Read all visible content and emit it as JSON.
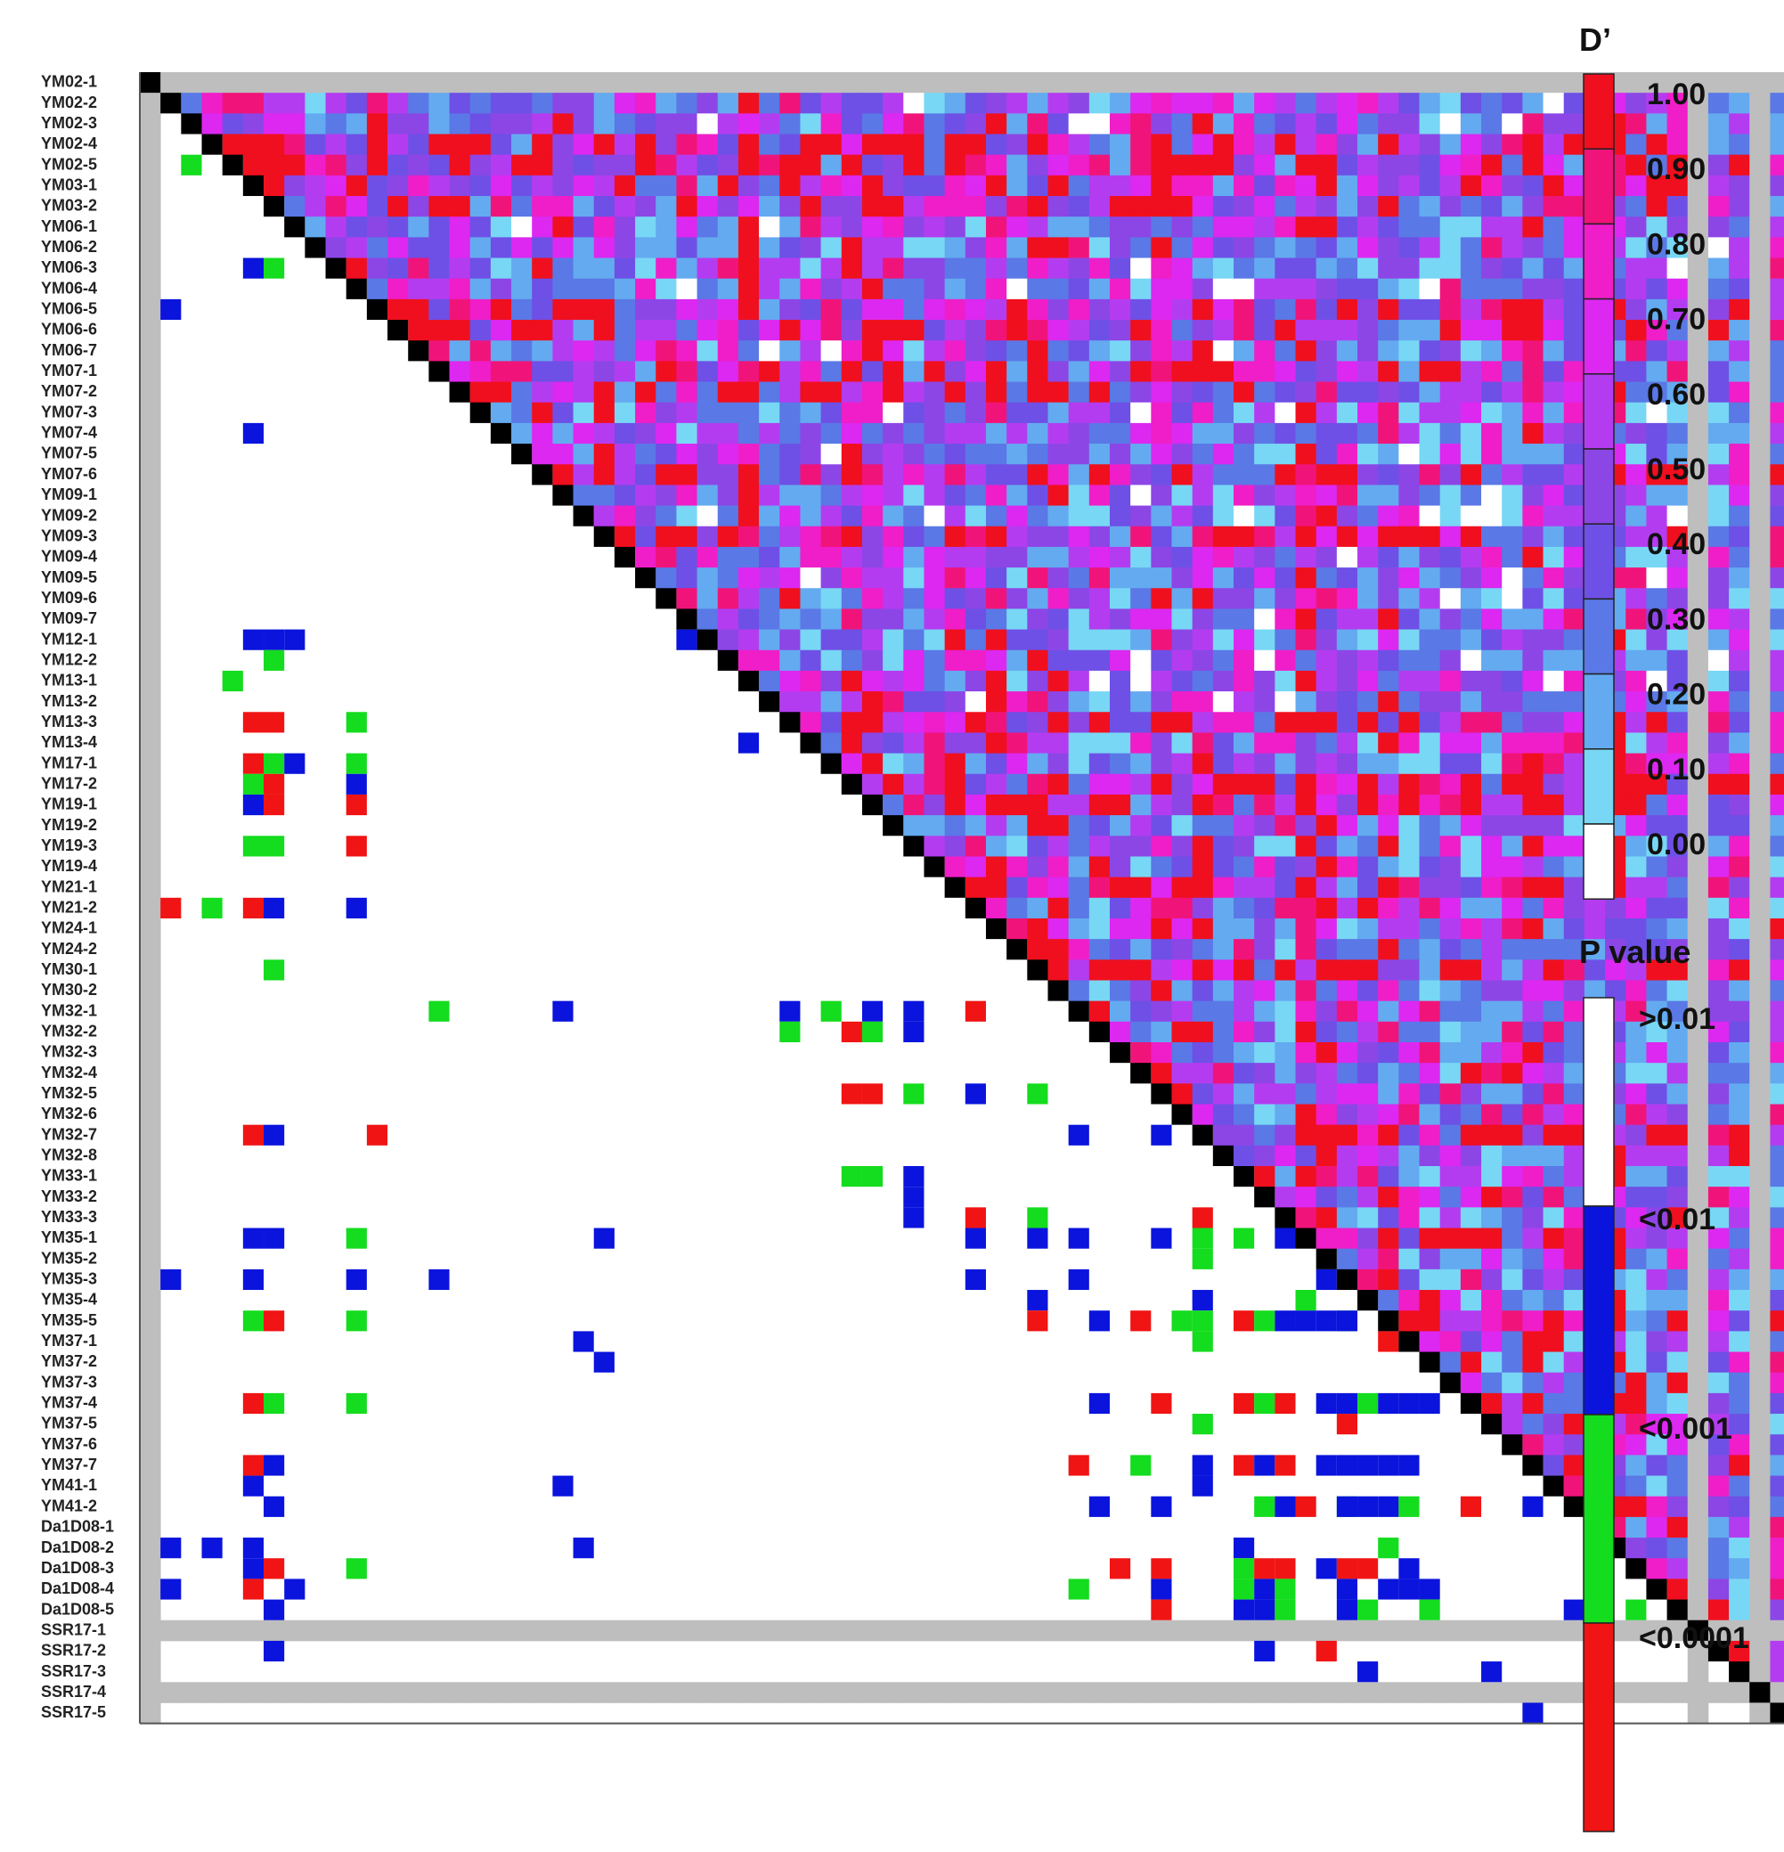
{
  "chart_data": {
    "type": "heatmap",
    "markers": [
      "YM02-1",
      "YM02-2",
      "YM02-3",
      "YM02-4",
      "YM02-5",
      "YM03-1",
      "YM03-2",
      "YM06-1",
      "YM06-2",
      "YM06-3",
      "YM06-4",
      "YM06-5",
      "YM06-6",
      "YM06-7",
      "YM07-1",
      "YM07-2",
      "YM07-3",
      "YM07-4",
      "YM07-5",
      "YM07-6",
      "YM09-1",
      "YM09-2",
      "YM09-3",
      "YM09-4",
      "YM09-5",
      "YM09-6",
      "YM09-7",
      "YM12-1",
      "YM12-2",
      "YM13-1",
      "YM13-2",
      "YM13-3",
      "YM13-4",
      "YM17-1",
      "YM17-2",
      "YM19-1",
      "YM19-2",
      "YM19-3",
      "YM19-4",
      "YM21-1",
      "YM21-2",
      "YM24-1",
      "YM24-2",
      "YM30-1",
      "YM30-2",
      "YM32-1",
      "YM32-2",
      "YM32-3",
      "YM32-4",
      "YM32-5",
      "YM32-6",
      "YM32-7",
      "YM32-8",
      "YM33-1",
      "YM33-2",
      "YM33-3",
      "YM35-1",
      "YM35-2",
      "YM35-3",
      "YM35-4",
      "YM35-5",
      "YM37-1",
      "YM37-2",
      "YM37-3",
      "YM37-4",
      "YM37-5",
      "YM37-6",
      "YM37-7",
      "YM41-1",
      "YM41-2",
      "Da1D08-1",
      "Da1D08-2",
      "Da1D08-3",
      "Da1D08-4",
      "Da1D08-5",
      "SSR17-1",
      "SSR17-2",
      "SSR17-3",
      "SSR17-4",
      "SSR17-5"
    ],
    "monomorphic_markers": [
      "YM02-1",
      "SSR17-1",
      "SSR17-4"
    ],
    "upper_triangle": "D'",
    "lower_triangle": "P value",
    "significant_pairs": [
      {
        "row": "YM02-5",
        "col": "YM02-3",
        "p": "<0.001"
      },
      {
        "row": "YM06-3",
        "col": "YM03-1",
        "p": "<0.01"
      },
      {
        "row": "YM06-3",
        "col": "YM03-2",
        "p": "<0.001"
      },
      {
        "row": "YM06-5",
        "col": "YM02-2",
        "p": "<0.01"
      },
      {
        "row": "YM07-4",
        "col": "YM03-1",
        "p": "<0.01"
      },
      {
        "row": "YM09-7",
        "col": "YM12-1",
        "p": "<0.01"
      },
      {
        "row": "YM12-1",
        "col": "YM03-1",
        "p": "<0.01"
      },
      {
        "row": "YM12-1",
        "col": "YM03-2",
        "p": "<0.01"
      },
      {
        "row": "YM12-1",
        "col": "YM06-1",
        "p": "<0.01"
      },
      {
        "row": "YM12-2",
        "col": "YM03-2",
        "p": "<0.001"
      },
      {
        "row": "YM13-1",
        "col": "YM02-5",
        "p": "<0.001"
      },
      {
        "row": "YM13-1",
        "col": "YM13-4",
        "p": "<0.01"
      },
      {
        "row": "YM13-3",
        "col": "YM03-1",
        "p": "<0.0001"
      },
      {
        "row": "YM13-3",
        "col": "YM03-2",
        "p": "<0.0001"
      },
      {
        "row": "YM13-3",
        "col": "YM06-4",
        "p": "<0.001"
      },
      {
        "row": "YM13-3",
        "col": "YM32-1",
        "p": "<0.01"
      },
      {
        "row": "YM13-3",
        "col": "YM32-2",
        "p": "<0.001"
      },
      {
        "row": "YM17-1",
        "col": "YM03-1",
        "p": "<0.0001"
      },
      {
        "row": "YM17-1",
        "col": "YM03-2",
        "p": "<0.001"
      },
      {
        "row": "YM17-1",
        "col": "YM06-1",
        "p": "<0.01"
      },
      {
        "row": "YM17-1",
        "col": "YM06-4",
        "p": "<0.001"
      },
      {
        "row": "YM17-1",
        "col": "YM32-1",
        "p": "<0.001"
      },
      {
        "row": "YM17-2",
        "col": "YM03-1",
        "p": "<0.001"
      },
      {
        "row": "YM17-2",
        "col": "YM03-2",
        "p": "<0.0001"
      },
      {
        "row": "YM17-2",
        "col": "YM06-4",
        "p": "<0.01"
      },
      {
        "row": "YM17-2",
        "col": "YM32-2",
        "p": "<0.0001"
      },
      {
        "row": "YM17-2",
        "col": "YM32-5",
        "p": "<0.0001"
      },
      {
        "row": "YM17-2",
        "col": "YM33-1",
        "p": "<0.001"
      },
      {
        "row": "YM19-1",
        "col": "YM03-1",
        "p": "<0.01"
      },
      {
        "row": "YM19-1",
        "col": "YM03-2",
        "p": "<0.0001"
      },
      {
        "row": "YM19-1",
        "col": "YM06-4",
        "p": "<0.0001"
      },
      {
        "row": "YM19-1",
        "col": "YM32-1",
        "p": "<0.01"
      },
      {
        "row": "YM19-1",
        "col": "YM32-2",
        "p": "<0.001"
      },
      {
        "row": "YM19-1",
        "col": "YM32-5",
        "p": "<0.0001"
      },
      {
        "row": "YM19-1",
        "col": "YM33-1",
        "p": "<0.001"
      },
      {
        "row": "YM19-3",
        "col": "YM03-1",
        "p": "<0.001"
      },
      {
        "row": "YM19-3",
        "col": "YM03-2",
        "p": "<0.001"
      },
      {
        "row": "YM19-3",
        "col": "YM06-4",
        "p": "<0.0001"
      },
      {
        "row": "YM19-3",
        "col": "YM32-1",
        "p": "<0.01"
      },
      {
        "row": "YM19-3",
        "col": "YM32-2",
        "p": "<0.01"
      },
      {
        "row": "YM19-3",
        "col": "YM32-5",
        "p": "<0.001"
      },
      {
        "row": "YM19-3",
        "col": "YM33-1",
        "p": "<0.01"
      },
      {
        "row": "YM19-3",
        "col": "YM33-2",
        "p": "<0.01"
      },
      {
        "row": "YM19-3",
        "col": "YM33-3",
        "p": "<0.01"
      },
      {
        "row": "YM21-2",
        "col": "YM02-2",
        "p": "<0.0001"
      },
      {
        "row": "YM21-2",
        "col": "YM02-4",
        "p": "<0.001"
      },
      {
        "row": "YM21-2",
        "col": "YM03-1",
        "p": "<0.0001"
      },
      {
        "row": "YM21-2",
        "col": "YM03-2",
        "p": "<0.01"
      },
      {
        "row": "YM21-2",
        "col": "YM06-4",
        "p": "<0.01"
      },
      {
        "row": "YM21-2",
        "col": "YM32-1",
        "p": "<0.0001"
      },
      {
        "row": "YM21-2",
        "col": "YM32-5",
        "p": "<0.01"
      },
      {
        "row": "YM21-2",
        "col": "YM33-3",
        "p": "<0.0001"
      },
      {
        "row": "YM21-2",
        "col": "YM35-1",
        "p": "<0.01"
      },
      {
        "row": "YM21-2",
        "col": "YM35-3",
        "p": "<0.01"
      },
      {
        "row": "YM30-1",
        "col": "YM03-2",
        "p": "<0.001"
      },
      {
        "row": "YM30-1",
        "col": "YM32-5",
        "p": "<0.001"
      },
      {
        "row": "YM30-1",
        "col": "YM33-3",
        "p": "<0.001"
      },
      {
        "row": "YM30-1",
        "col": "YM35-1",
        "p": "<0.01"
      },
      {
        "row": "YM30-1",
        "col": "YM35-4",
        "p": "<0.01"
      },
      {
        "row": "YM30-1",
        "col": "YM35-5",
        "p": "<0.0001"
      },
      {
        "row": "YM32-1",
        "col": "YM07-1",
        "p": "<0.001"
      },
      {
        "row": "YM32-1",
        "col": "YM09-1",
        "p": "<0.01"
      },
      {
        "row": "YM32-7",
        "col": "YM03-1",
        "p": "<0.0001"
      },
      {
        "row": "YM32-7",
        "col": "YM03-2",
        "p": "<0.01"
      },
      {
        "row": "YM32-7",
        "col": "YM06-5",
        "p": "<0.0001"
      },
      {
        "row": "YM32-7",
        "col": "YM32-1",
        "p": "<0.01"
      },
      {
        "row": "YM32-7",
        "col": "YM32-5",
        "p": "<0.01"
      },
      {
        "row": "YM32-7",
        "col": "YM33-3",
        "p": "<0.0001"
      },
      {
        "row": "YM32-7",
        "col": "YM35-1",
        "p": "<0.001"
      },
      {
        "row": "YM32-7",
        "col": "YM35-2",
        "p": "<0.001"
      },
      {
        "row": "YM32-7",
        "col": "YM35-4",
        "p": "<0.01"
      },
      {
        "row": "YM32-7",
        "col": "YM35-5",
        "p": "<0.001"
      },
      {
        "row": "YM32-7",
        "col": "YM37-1",
        "p": "<0.001"
      },
      {
        "row": "YM32-7",
        "col": "YM37-5",
        "p": "<0.001"
      },
      {
        "row": "YM32-7",
        "col": "YM37-7",
        "p": "<0.01"
      },
      {
        "row": "YM32-7",
        "col": "YM41-1",
        "p": "<0.01"
      },
      {
        "row": "YM35-1",
        "col": "YM03-1",
        "p": "<0.01"
      },
      {
        "row": "YM35-1",
        "col": "YM03-2",
        "p": "<0.01"
      },
      {
        "row": "YM35-1",
        "col": "YM06-4",
        "p": "<0.001"
      },
      {
        "row": "YM35-1",
        "col": "YM09-3",
        "p": "<0.01"
      },
      {
        "row": "YM35-1",
        "col": "YM32-1",
        "p": "<0.01"
      },
      {
        "row": "YM35-1",
        "col": "YM32-5",
        "p": "<0.01"
      },
      {
        "row": "YM35-1",
        "col": "YM33-1",
        "p": "<0.001"
      },
      {
        "row": "YM35-1",
        "col": "YM33-3",
        "p": "<0.01"
      },
      {
        "row": "YM35-1",
        "col": "YM35-4",
        "p": "<0.001"
      },
      {
        "row": "YM35-1",
        "col": "YM35-5",
        "p": "<0.01"
      },
      {
        "row": "YM35-1",
        "col": "YM41-2",
        "p": "<0.0001"
      },
      {
        "row": "YM35-3",
        "col": "YM02-2",
        "p": "<0.01"
      },
      {
        "row": "YM35-3",
        "col": "YM03-1",
        "p": "<0.01"
      },
      {
        "row": "YM35-3",
        "col": "YM06-4",
        "p": "<0.01"
      },
      {
        "row": "YM35-3",
        "col": "YM07-1",
        "p": "<0.01"
      },
      {
        "row": "YM35-3",
        "col": "YM32-1",
        "p": "<0.01"
      },
      {
        "row": "YM35-3",
        "col": "YM35-2",
        "p": "<0.01"
      },
      {
        "row": "YM35-3",
        "col": "YM35-5",
        "p": "<0.001"
      },
      {
        "row": "YM35-3",
        "col": "YM37-5",
        "p": "<0.0001"
      },
      {
        "row": "YM35-3",
        "col": "YM41-2",
        "p": "<0.001"
      },
      {
        "row": "YM35-5",
        "col": "YM03-1",
        "p": "<0.001"
      },
      {
        "row": "YM35-5",
        "col": "YM03-2",
        "p": "<0.0001"
      },
      {
        "row": "YM35-5",
        "col": "YM06-4",
        "p": "<0.001"
      },
      {
        "row": "YM35-5",
        "col": "YM32-2",
        "p": "<0.01"
      },
      {
        "row": "YM35-5",
        "col": "YM32-4",
        "p": "<0.0001"
      },
      {
        "row": "YM35-5",
        "col": "YM32-6",
        "p": "<0.001"
      },
      {
        "row": "YM35-5",
        "col": "YM33-1",
        "p": "<0.0001"
      },
      {
        "row": "YM35-5",
        "col": "YM33-2",
        "p": "<0.001"
      },
      {
        "row": "YM35-5",
        "col": "YM33-3",
        "p": "<0.01"
      },
      {
        "row": "YM35-5",
        "col": "YM35-2",
        "p": "<0.01"
      },
      {
        "row": "YM35-5",
        "col": "YM35-3",
        "p": "<0.01"
      },
      {
        "row": "YM35-5",
        "col": "YM37-1",
        "p": "<0.0001"
      },
      {
        "row": "YM35-5",
        "col": "YM41-2",
        "p": "<0.01"
      },
      {
        "row": "YM37-1",
        "col": "YM09-2",
        "p": "<0.01"
      },
      {
        "row": "YM37-2",
        "col": "YM09-3",
        "p": "<0.01"
      },
      {
        "row": "YM37-4",
        "col": "YM03-1",
        "p": "<0.0001"
      },
      {
        "row": "YM37-4",
        "col": "YM03-2",
        "p": "<0.001"
      },
      {
        "row": "YM37-4",
        "col": "YM06-4",
        "p": "<0.001"
      },
      {
        "row": "YM37-4",
        "col": "YM32-2",
        "p": "<0.01"
      },
      {
        "row": "YM37-4",
        "col": "YM32-5",
        "p": "<0.0001"
      },
      {
        "row": "YM37-4",
        "col": "YM33-1",
        "p": "<0.0001"
      },
      {
        "row": "YM37-4",
        "col": "YM33-2",
        "p": "<0.001"
      },
      {
        "row": "YM37-4",
        "col": "YM33-3",
        "p": "<0.0001"
      },
      {
        "row": "YM37-4",
        "col": "YM35-2",
        "p": "<0.01"
      },
      {
        "row": "YM37-4",
        "col": "YM35-3",
        "p": "<0.01"
      },
      {
        "row": "YM37-4",
        "col": "YM35-4",
        "p": "<0.001"
      },
      {
        "row": "YM37-4",
        "col": "YM35-5",
        "p": "<0.01"
      },
      {
        "row": "YM37-4",
        "col": "YM37-1",
        "p": "<0.01"
      },
      {
        "row": "YM37-4",
        "col": "YM37-2",
        "p": "<0.01"
      },
      {
        "row": "YM37-4",
        "col": "YM41-2",
        "p": "<0.0001"
      },
      {
        "row": "YM37-7",
        "col": "YM03-1",
        "p": "<0.0001"
      },
      {
        "row": "YM37-7",
        "col": "YM03-2",
        "p": "<0.01"
      },
      {
        "row": "YM37-7",
        "col": "YM32-1",
        "p": "<0.0001"
      },
      {
        "row": "YM37-7",
        "col": "YM32-4",
        "p": "<0.001"
      },
      {
        "row": "YM37-7",
        "col": "YM33-1",
        "p": "<0.0001"
      },
      {
        "row": "YM37-7",
        "col": "YM33-2",
        "p": "<0.01"
      },
      {
        "row": "YM37-7",
        "col": "YM33-3",
        "p": "<0.0001"
      },
      {
        "row": "YM37-7",
        "col": "YM35-2",
        "p": "<0.01"
      },
      {
        "row": "YM37-7",
        "col": "YM35-3",
        "p": "<0.01"
      },
      {
        "row": "YM37-7",
        "col": "YM35-4",
        "p": "<0.01"
      },
      {
        "row": "YM37-7",
        "col": "YM35-5",
        "p": "<0.01"
      },
      {
        "row": "YM37-7",
        "col": "YM37-1",
        "p": "<0.01"
      },
      {
        "row": "YM37-7",
        "col": "YM41-2",
        "p": "<0.01"
      },
      {
        "row": "YM41-1",
        "col": "YM03-1",
        "p": "<0.01"
      },
      {
        "row": "YM41-1",
        "col": "YM09-1",
        "p": "<0.01"
      },
      {
        "row": "YM41-2",
        "col": "YM03-2",
        "p": "<0.01"
      },
      {
        "row": "YM41-2",
        "col": "YM32-2",
        "p": "<0.01"
      },
      {
        "row": "YM41-2",
        "col": "YM32-5",
        "p": "<0.01"
      },
      {
        "row": "YM41-2",
        "col": "YM33-2",
        "p": "<0.001"
      },
      {
        "row": "YM41-2",
        "col": "YM33-3",
        "p": "<0.01"
      },
      {
        "row": "YM41-2",
        "col": "YM35-3",
        "p": "<0.01"
      },
      {
        "row": "YM41-2",
        "col": "YM35-4",
        "p": "<0.01"
      },
      {
        "row": "YM41-2",
        "col": "YM37-1",
        "p": "<0.001"
      },
      {
        "row": "Da1D08-2",
        "col": "YM02-2",
        "p": "<0.01"
      },
      {
        "row": "Da1D08-2",
        "col": "YM02-4",
        "p": "<0.01"
      },
      {
        "row": "Da1D08-2",
        "col": "YM03-1",
        "p": "<0.01"
      },
      {
        "row": "Da1D08-2",
        "col": "YM09-2",
        "p": "<0.01"
      },
      {
        "row": "Da1D08-2",
        "col": "YM33-1",
        "p": "<0.01"
      },
      {
        "row": "Da1D08-2",
        "col": "YM35-5",
        "p": "<0.001"
      },
      {
        "row": "Da1D08-3",
        "col": "YM03-1",
        "p": "<0.01"
      },
      {
        "row": "Da1D08-3",
        "col": "YM03-2",
        "p": "<0.0001"
      },
      {
        "row": "Da1D08-3",
        "col": "YM06-4",
        "p": "<0.001"
      },
      {
        "row": "Da1D08-3",
        "col": "YM32-3",
        "p": "<0.0001"
      },
      {
        "row": "Da1D08-3",
        "col": "YM32-5",
        "p": "<0.0001"
      },
      {
        "row": "Da1D08-3",
        "col": "YM33-1",
        "p": "<0.001"
      },
      {
        "row": "Da1D08-3",
        "col": "YM33-2",
        "p": "<0.0001"
      },
      {
        "row": "Da1D08-3",
        "col": "YM33-3",
        "p": "<0.0001"
      },
      {
        "row": "Da1D08-3",
        "col": "YM35-2",
        "p": "<0.01"
      },
      {
        "row": "Da1D08-3",
        "col": "YM35-3",
        "p": "<0.0001"
      },
      {
        "row": "Da1D08-3",
        "col": "YM35-4",
        "p": "<0.0001"
      },
      {
        "row": "Da1D08-3",
        "col": "YM37-1",
        "p": "<0.01"
      },
      {
        "row": "Da1D08-4",
        "col": "YM02-2",
        "p": "<0.01"
      },
      {
        "row": "Da1D08-4",
        "col": "YM03-1",
        "p": "<0.0001"
      },
      {
        "row": "Da1D08-4",
        "col": "YM06-1",
        "p": "<0.01"
      },
      {
        "row": "Da1D08-4",
        "col": "YM32-1",
        "p": "<0.001"
      },
      {
        "row": "Da1D08-4",
        "col": "YM32-5",
        "p": "<0.01"
      },
      {
        "row": "Da1D08-4",
        "col": "YM33-1",
        "p": "<0.001"
      },
      {
        "row": "Da1D08-4",
        "col": "YM33-2",
        "p": "<0.01"
      },
      {
        "row": "Da1D08-4",
        "col": "YM33-3",
        "p": "<0.001"
      },
      {
        "row": "Da1D08-4",
        "col": "YM35-3",
        "p": "<0.01"
      },
      {
        "row": "Da1D08-4",
        "col": "YM35-5",
        "p": "<0.01"
      },
      {
        "row": "Da1D08-4",
        "col": "YM37-1",
        "p": "<0.01"
      },
      {
        "row": "Da1D08-4",
        "col": "YM37-2",
        "p": "<0.01"
      },
      {
        "row": "Da1D08-5",
        "col": "YM03-2",
        "p": "<0.01"
      },
      {
        "row": "Da1D08-5",
        "col": "YM32-5",
        "p": "<0.0001"
      },
      {
        "row": "Da1D08-5",
        "col": "YM33-1",
        "p": "<0.01"
      },
      {
        "row": "Da1D08-5",
        "col": "YM33-2",
        "p": "<0.01"
      },
      {
        "row": "Da1D08-5",
        "col": "YM33-3",
        "p": "<0.001"
      },
      {
        "row": "Da1D08-5",
        "col": "YM35-3",
        "p": "<0.01"
      },
      {
        "row": "Da1D08-5",
        "col": "YM35-4",
        "p": "<0.001"
      },
      {
        "row": "Da1D08-5",
        "col": "YM37-2",
        "p": "<0.001"
      },
      {
        "row": "Da1D08-5",
        "col": "YM41-2",
        "p": "<0.01"
      },
      {
        "row": "Da1D08-5",
        "col": "Da1D08-3",
        "p": "<0.001"
      },
      {
        "row": "SSR17-2",
        "col": "YM03-2",
        "p": "<0.01"
      },
      {
        "row": "SSR17-2",
        "col": "YM33-2",
        "p": "<0.01"
      },
      {
        "row": "SSR17-2",
        "col": "YM35-2",
        "p": "<0.0001"
      },
      {
        "row": "SSR17-3",
        "col": "YM35-4",
        "p": "<0.01"
      },
      {
        "row": "SSR17-3",
        "col": "YM37-5",
        "p": "<0.01"
      },
      {
        "row": "SSR17-5",
        "col": "YM37-7",
        "p": "<0.01"
      }
    ],
    "d_prime_scale": {
      "title": "D’",
      "ticks": [
        "1.00",
        "0.90",
        "0.80",
        "0.70",
        "0.60",
        "0.50",
        "0.40",
        "0.30",
        "0.20",
        "0.10",
        "0.00"
      ],
      "colors": [
        "#f00f1e",
        "#f0147a",
        "#ef1ec8",
        "#dc28f0",
        "#b43cf0",
        "#8c46e6",
        "#6e50e6",
        "#5a78e6",
        "#64aaf0",
        "#78d7f5",
        "#ffffff"
      ]
    },
    "p_value_scale": {
      "title": "P value",
      "labels": [
        ">0.01",
        "<0.01",
        "<0.001",
        "<0.0001"
      ],
      "colors": [
        "#ffffff",
        "#0a14dc",
        "#14dc1e",
        "#f01414"
      ]
    },
    "diagonal_color": "#000000",
    "monomorphic_color": "#bebebe"
  }
}
